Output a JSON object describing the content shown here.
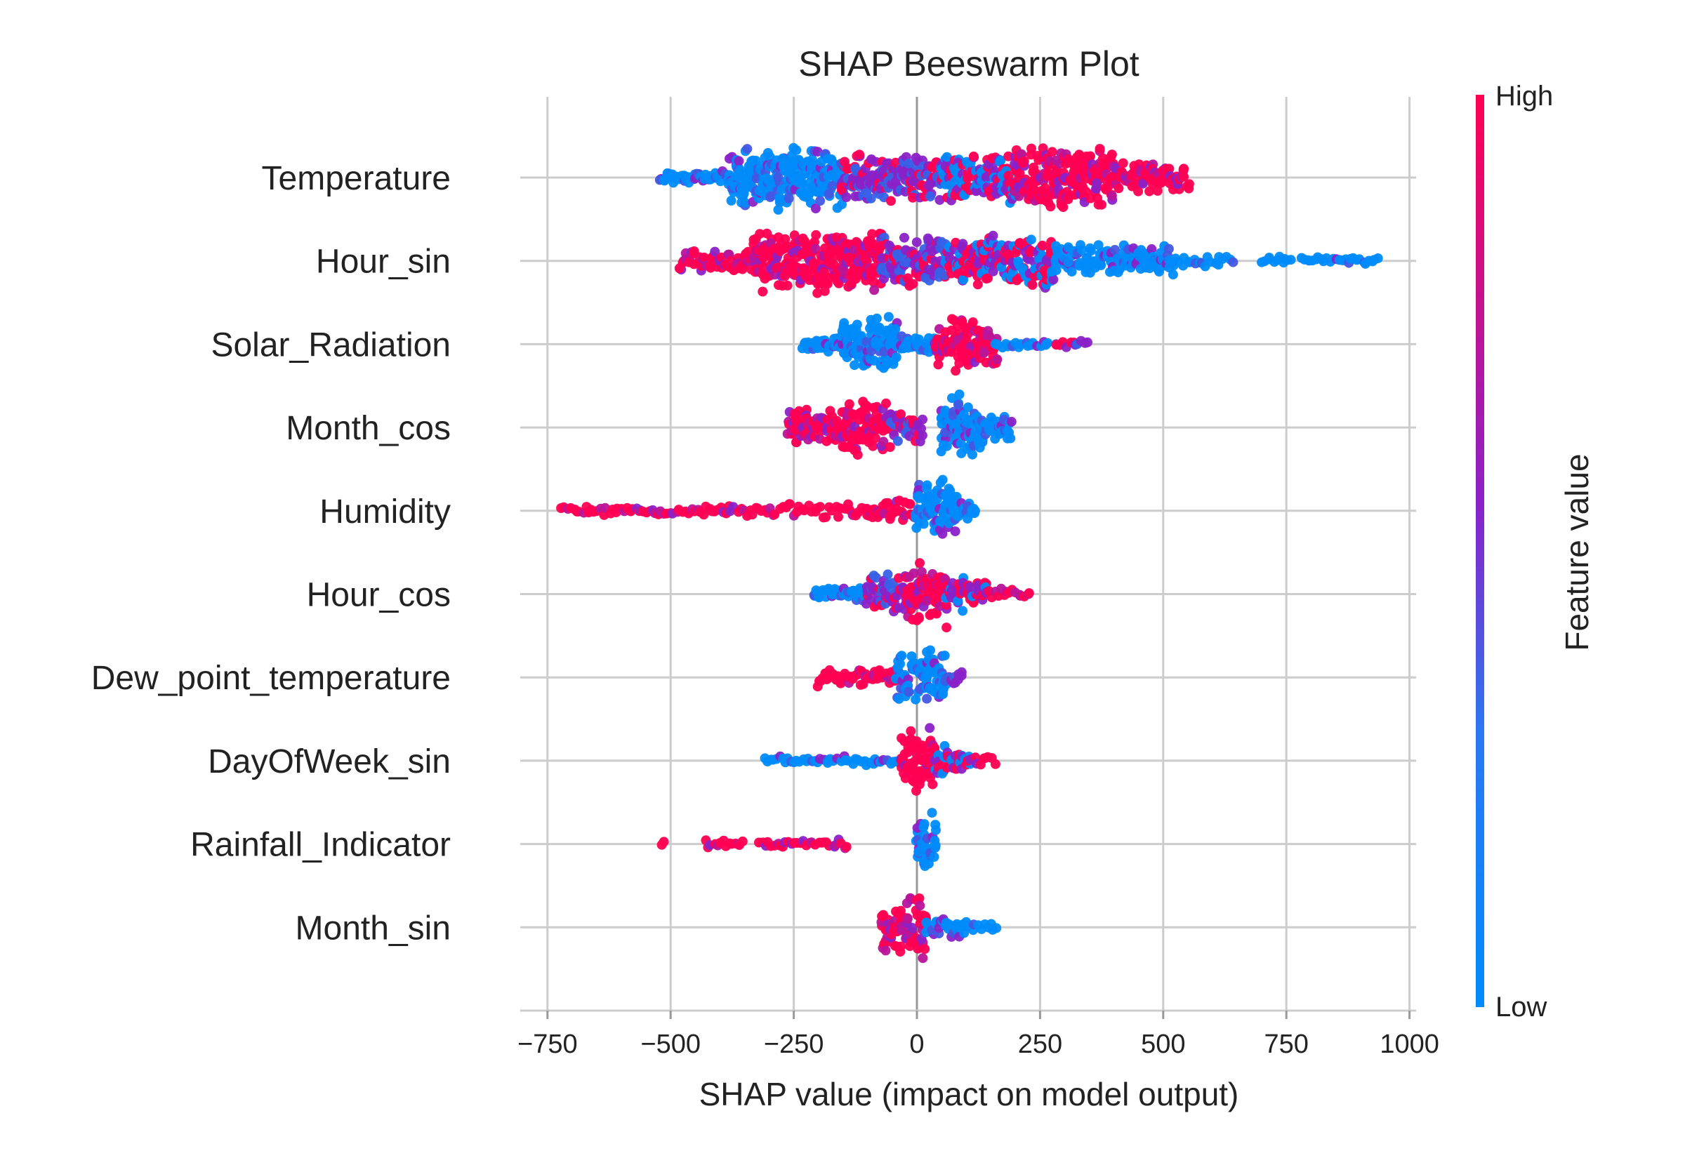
{
  "colors": {
    "high": "#ff0052",
    "mid": "#8a22c8",
    "low": "#008bfb",
    "grid": "#cccccc",
    "zero": "#999999",
    "text": "#222222"
  },
  "chart_data": {
    "type": "scatter",
    "subtype": "shap-beeswarm",
    "title": "SHAP Beeswarm Plot",
    "xlabel": "SHAP value (impact on model output)",
    "xlim": [
      -800,
      1030
    ],
    "xticks": [
      -750,
      -500,
      -250,
      0,
      250,
      500,
      750,
      1000
    ],
    "xtick_labels": [
      "−750",
      "−500",
      "−250",
      "0",
      "250",
      "500",
      "750",
      "1000"
    ],
    "grid": true,
    "colorbar": {
      "label": "Feature value",
      "high_label": "High",
      "low_label": "Low"
    },
    "features": [
      {
        "name": "Temperature",
        "min": -520,
        "max": 550,
        "segments": [
          [
            -520,
            -380,
            "low",
            0.25
          ],
          [
            -380,
            -150,
            "low",
            1.0
          ],
          [
            -150,
            50,
            "mid",
            0.8
          ],
          [
            50,
            200,
            "mix",
            0.85
          ],
          [
            200,
            400,
            "high",
            1.0
          ],
          [
            400,
            550,
            "high",
            0.5
          ]
        ]
      },
      {
        "name": "Hour_sin",
        "min": -480,
        "max": 940,
        "segments": [
          [
            -480,
            -330,
            "high",
            0.4
          ],
          [
            -330,
            -70,
            "high",
            1.0
          ],
          [
            -70,
            60,
            "mid",
            0.9
          ],
          [
            60,
            280,
            "mix",
            0.85
          ],
          [
            280,
            520,
            "low",
            0.5
          ],
          [
            520,
            640,
            "low",
            0.2
          ],
          [
            700,
            760,
            "low",
            0.15
          ],
          [
            780,
            940,
            "low",
            0.12
          ]
        ]
      },
      {
        "name": "Solar_Radiation",
        "min": -230,
        "max": 350,
        "segments": [
          [
            -230,
            -150,
            "low",
            0.25
          ],
          [
            -150,
            -40,
            "low",
            1.0
          ],
          [
            -40,
            40,
            "low",
            0.35
          ],
          [
            40,
            160,
            "high",
            0.8
          ],
          [
            160,
            270,
            "low",
            0.15
          ],
          [
            280,
            350,
            "mid",
            0.12
          ]
        ]
      },
      {
        "name": "Month_cos",
        "min": -260,
        "max": 190,
        "segments": [
          [
            -260,
            -150,
            "high",
            0.6
          ],
          [
            -150,
            -50,
            "high",
            0.85
          ],
          [
            -50,
            10,
            "mid",
            0.5
          ],
          [
            50,
            130,
            "low",
            1.0
          ],
          [
            130,
            190,
            "low",
            0.5
          ]
        ]
      },
      {
        "name": "Humidity",
        "min": -720,
        "max": 120,
        "segments": [
          [
            -720,
            -560,
            "high",
            0.08
          ],
          [
            -560,
            -400,
            "high",
            0.12
          ],
          [
            -400,
            -100,
            "high",
            0.22
          ],
          [
            -100,
            0,
            "high",
            0.35
          ],
          [
            0,
            80,
            "low",
            1.0
          ],
          [
            80,
            120,
            "low",
            0.45
          ]
        ]
      },
      {
        "name": "Hour_cos",
        "min": -210,
        "max": 230,
        "segments": [
          [
            -210,
            -100,
            "low",
            0.3
          ],
          [
            -100,
            -20,
            "mid",
            0.65
          ],
          [
            -20,
            60,
            "high",
            1.0
          ],
          [
            60,
            140,
            "mix",
            0.55
          ],
          [
            140,
            230,
            "high",
            0.22
          ]
        ]
      },
      {
        "name": "Dew_point_temperature",
        "min": -200,
        "max": 90,
        "segments": [
          [
            -200,
            -40,
            "high",
            0.3
          ],
          [
            -40,
            20,
            "low",
            0.8
          ],
          [
            20,
            60,
            "low",
            1.0
          ],
          [
            60,
            90,
            "mid",
            0.3
          ]
        ]
      },
      {
        "name": "DayOfWeek_sin",
        "min": -310,
        "max": 160,
        "segments": [
          [
            -310,
            -180,
            "low",
            0.08
          ],
          [
            -180,
            -30,
            "low",
            0.18
          ],
          [
            -30,
            40,
            "high",
            1.0
          ],
          [
            40,
            110,
            "mix",
            0.45
          ],
          [
            110,
            160,
            "high",
            0.15
          ]
        ]
      },
      {
        "name": "Rainfall_Indicator",
        "min": -520,
        "max": 40,
        "segments": [
          [
            -520,
            -510,
            "high",
            0.05
          ],
          [
            -430,
            -350,
            "high",
            0.12
          ],
          [
            -320,
            -140,
            "high",
            0.15
          ],
          [
            0,
            40,
            "low",
            1.0
          ]
        ]
      },
      {
        "name": "Month_sin",
        "min": -70,
        "max": 160,
        "segments": [
          [
            -70,
            -20,
            "high",
            0.8
          ],
          [
            -20,
            20,
            "high",
            1.0
          ],
          [
            20,
            100,
            "low",
            0.35
          ],
          [
            100,
            160,
            "low",
            0.18
          ]
        ]
      }
    ]
  }
}
